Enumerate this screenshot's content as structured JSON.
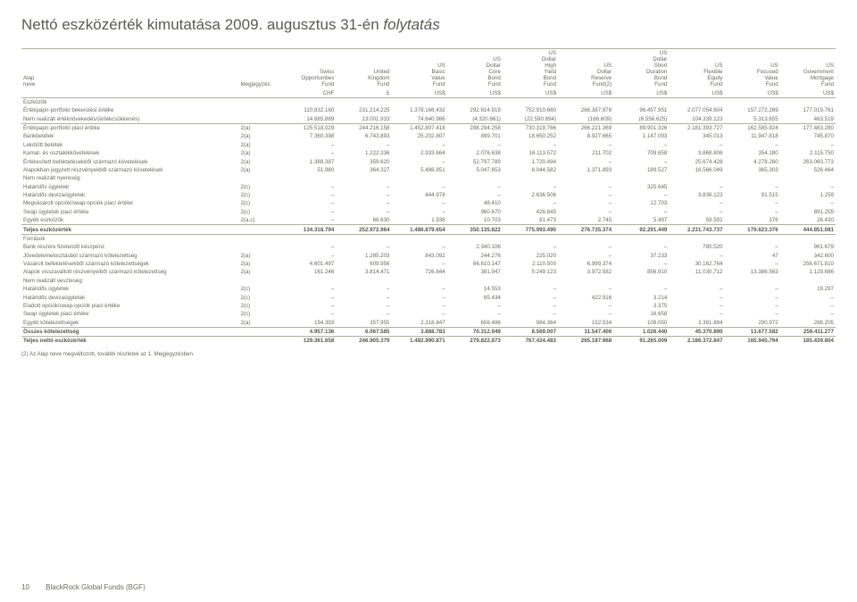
{
  "title_main": "Nettó eszközérték kimutatása 2009. augusztus 31-én ",
  "title_ital": "folytatás",
  "header_row1": [
    "Alap neve",
    "Megjegyzés",
    "Swiss Opportunities Fund",
    "United Kingdom Fund",
    "US Basic Value Fund",
    "US Dollar Core Bond Fund",
    "US Dollar High Yield Bond Fund",
    "US Dollar Reserve Fund(2)",
    "US Dollar Short Duration Bond Fund",
    "US Flexible Equity Fund",
    "US Focused Value Fund",
    "US Government Mortgage Fund"
  ],
  "header_row2": [
    "",
    "",
    "CHF",
    "£",
    "US$",
    "US$",
    "US$",
    "US$",
    "US$",
    "US$",
    "US$",
    "US$"
  ],
  "rows": [
    {
      "cls": "section",
      "c": [
        "Eszközök",
        "",
        "",
        "",
        "",
        "",
        "",
        "",
        "",
        "",
        "",
        ""
      ]
    },
    {
      "c": [
        "Értékpapír-portfolió bekerülési értéke",
        "",
        "110.832.160",
        "231.214.225",
        "1.378.166.432",
        "292.614.919",
        "752.910.660",
        "266.387.978",
        "96.457.951",
        "2.077.054.604",
        "157.272.269",
        "177.019.761"
      ]
    },
    {
      "c": [
        "Nem realizált értéknövekedés/(értékcsökkenés)",
        "",
        "14.685.869",
        "13.001.933",
        "74.640.986",
        "(4.320.661)",
        "(22.590.894)",
        "(166.609)",
        "(6.556.625)",
        "104.339.123",
        "5.313.655",
        "463.519"
      ]
    },
    {
      "cls": "sepabove",
      "c": [
        "Értékpapír-portfolió piaci értéke",
        "2(a)",
        "125.518.029",
        "244.216.158",
        "1.452.807.418",
        "288.294.258",
        "730.319.766",
        "266.221.369",
        "89.901.326",
        "2.181.393.727",
        "162.585.924",
        "177.483.280"
      ]
    },
    {
      "c": [
        "Bankbetétek",
        "2(a)",
        "7.360.398",
        "6.743.893",
        "25.202.807",
        "899.701",
        "18.650.252",
        "8.927.665",
        "1.147.093",
        "345.013",
        "11.947.818",
        "745.870"
      ]
    },
    {
      "c": [
        "Lekötött betétek",
        "2(a)",
        "–",
        "–",
        "–",
        "–",
        "–",
        "–",
        "–",
        "–",
        "–",
        "–"
      ]
    },
    {
      "c": [
        "Kamat- és osztalékkövetelések",
        "2(a)",
        "–",
        "1.222.336",
        "2.933.664",
        "2.076.638",
        "16.113.572",
        "211.702",
        "709.658",
        "3.868.806",
        "354.180",
        "2.115.750"
      ]
    },
    {
      "c": [
        "Értékesített befektetésekből származó követelések",
        "2(a)",
        "1.388.387",
        "359.620",
        "–",
        "52.797.789",
        "1.720.494",
        "–",
        "–",
        "25.674.428",
        "4.278.260",
        "263.060.773"
      ]
    },
    {
      "c": [
        "Alapokban jegyzett részvényekből származó követelések",
        "2(a)",
        "51.980",
        "364.327",
        "5.488.851",
        "5.047.653",
        "6.044.582",
        "1.371.893",
        "189.527",
        "16.566.049",
        "365.303",
        "526.464"
      ]
    },
    {
      "c": [
        "Nem realizált nyereség:",
        "",
        "",
        "",
        "",
        "",
        "",
        "",
        "",
        "",
        "",
        ""
      ]
    },
    {
      "c": [
        "  Határidős ügyletek",
        "2(c)",
        "–",
        "–",
        "–",
        "–",
        "–",
        "–",
        "325.645",
        "–",
        "–",
        "–"
      ]
    },
    {
      "c": [
        "  Határidős devizaügyletek",
        "2(c)",
        "–",
        "–",
        "444.978",
        "–",
        "2.636.506",
        "–",
        "–",
        "3.836.123",
        "91.515",
        "1.259"
      ]
    },
    {
      "c": [
        "Megvásárolt opciók/swap-opciók piaci értéke",
        "2(c)",
        "–",
        "–",
        "–",
        "48.410",
        "–",
        "–",
        "12.703",
        "–",
        "–",
        "–"
      ]
    },
    {
      "c": [
        "Swap ügyletek piaci értéke",
        "2(c)",
        "–",
        "–",
        "–",
        "960.670",
        "426.845",
        "–",
        "–",
        "–",
        "–",
        "891.255"
      ]
    },
    {
      "c": [
        "Egyéb eszközök",
        "2(a,c)",
        "–",
        "66.630",
        "1.936",
        "10.703",
        "81.473",
        "2.745",
        "5.497",
        "59.591",
        "376",
        "26.430"
      ]
    },
    {
      "cls": "sepabove dk",
      "c": [
        "Teljes eszközérték",
        "",
        "134.318.794",
        "252.972.964",
        "1.486.879.654",
        "350.135.822",
        "775.993.490",
        "276.735.374",
        "92.291.449",
        "2.231.743.737",
        "179.623.376",
        "444.851.081"
      ]
    },
    {
      "cls": "section sepabove",
      "c": [
        "Források",
        "",
        "",
        "",
        "",
        "",
        "",
        "",
        "",
        "",
        "",
        ""
      ]
    },
    {
      "c": [
        "Bank részére fizetendő készpénz",
        "",
        "–",
        "–",
        "–",
        "2.340.106",
        "–",
        "–",
        "–",
        "785.520",
        "–",
        "961.679"
      ]
    },
    {
      "c": [
        "Jövedelemelosztásból származó kötelezettség",
        "2(a)",
        "–",
        "1.285.203",
        "843.092",
        "244.276",
        "225.020",
        "–",
        "37.233",
        "–",
        "47",
        "342.600"
      ]
    },
    {
      "c": [
        "Vásárolt befektetésekből származó kötelezettségek",
        "2(a)",
        "4.601.497",
        "609.956",
        "–",
        "66.610.147",
        "2.110.500",
        "6.999.374",
        "–",
        "30.162.764",
        "–",
        "256.671.810"
      ]
    },
    {
      "c": [
        "Alapok visszaváltott részvényeiből származó kötelezettség",
        "2(a)",
        "161.246",
        "3.814.471",
        "726.844",
        "381.947",
        "5.249.123",
        "3.972.582",
        "856.910",
        "11.030.712",
        "13.386.563",
        "1.129.686"
      ]
    },
    {
      "c": [
        "Nem realizált veszteség:",
        "",
        "",
        "",
        "",
        "",
        "",
        "",
        "",
        "",
        "",
        ""
      ]
    },
    {
      "c": [
        "  Határidős ügyletek",
        "2(c)",
        "–",
        "–",
        "–",
        "14.553",
        "–",
        "–",
        "–",
        "–",
        "–",
        "19.297"
      ]
    },
    {
      "c": [
        "  Határidős devizaügyletek",
        "2(c)",
        "–",
        "–",
        "–",
        "65.434",
        "–",
        "422.916",
        "3.214",
        "–",
        "–",
        "–"
      ]
    },
    {
      "c": [
        "Eladott opciók/swap-opciók piaci értéke",
        "2(c)",
        "–",
        "–",
        "–",
        "–",
        "–",
        "–",
        "3.375",
        "–",
        "–",
        "–"
      ]
    },
    {
      "c": [
        "Swap ügyletek piaci értéke",
        "2(c)",
        "–",
        "–",
        "–",
        "–",
        "–",
        "–",
        "16.658",
        "–",
        "–",
        "–"
      ]
    },
    {
      "c": [
        "Egyéb kötelezettségek",
        "2(a)",
        "194.393",
        "357.955",
        "2.318.847",
        "656.486",
        "984.364",
        "152.534",
        "109.050",
        "3.391.894",
        "290.972",
        "286.205"
      ]
    },
    {
      "cls": "sepabove dk",
      "c": [
        "Összes kötelezettség",
        "",
        "4.957.136",
        "6.067.585",
        "3.888.783",
        "70.312.949",
        "8.569.007",
        "11.547.406",
        "1.026.440",
        "45.370.890",
        "13.677.582",
        "259.411.277"
      ]
    },
    {
      "cls": "sepabove dk",
      "c": [
        "Teljes nettó eszközérték",
        "",
        "129.361.658",
        "246.905.379",
        "1.482.990.871",
        "279.822.873",
        "767.424.483",
        "265.187.968",
        "91.265.009",
        "2.186.372.847",
        "165.945.794",
        "185.439.804"
      ]
    }
  ],
  "footnote": "(2) Az Alap neve megváltozott, további részletek az 1. Megjegyzésben.",
  "page_num": "10",
  "brand": "BlackRock Global Funds (BGF)"
}
